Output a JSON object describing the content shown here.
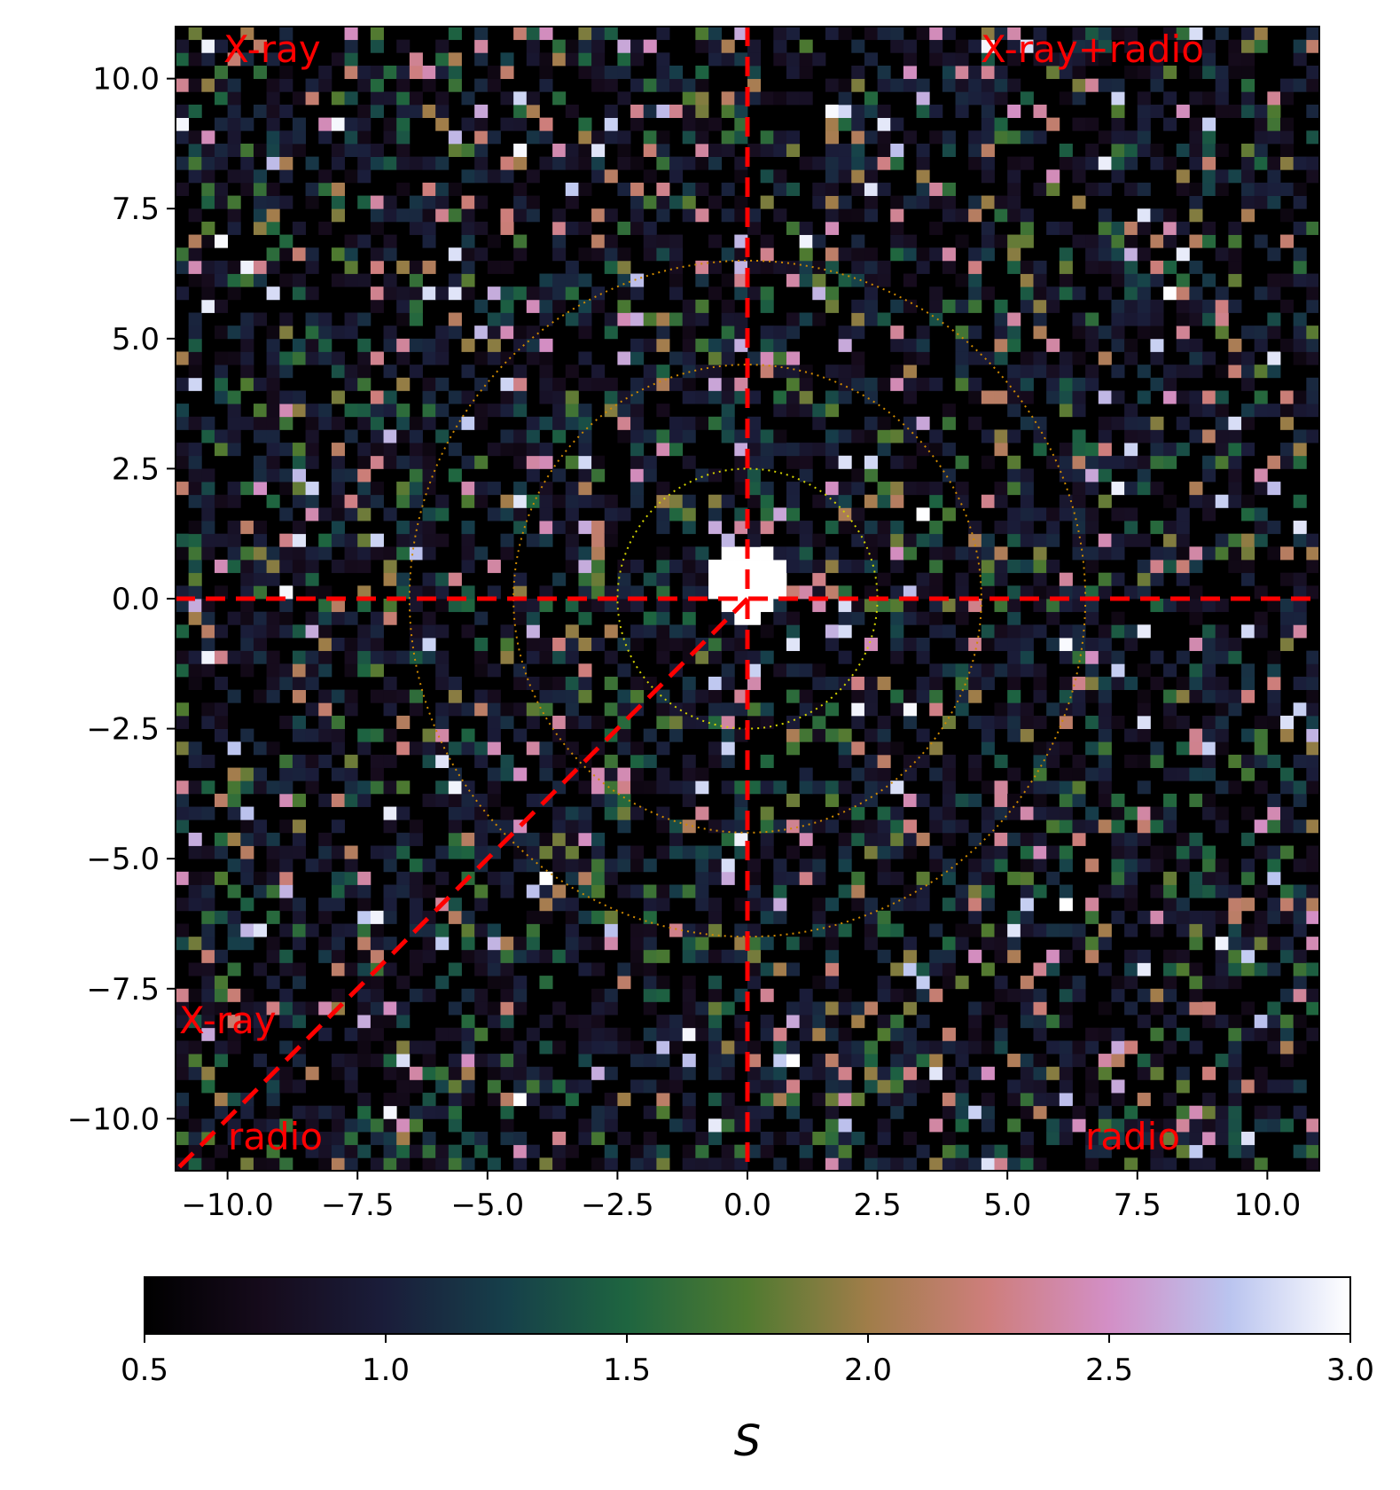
{
  "chart_data": {
    "type": "heatmap",
    "title": "",
    "xlabel": "",
    "ylabel": "",
    "xlim": [
      -11,
      11
    ],
    "ylim": [
      -11,
      11
    ],
    "grid": false,
    "x_ticks": [
      "−10.0",
      "−7.5",
      "−5.0",
      "−2.5",
      "0.0",
      "2.5",
      "5.0",
      "7.5",
      "10.0"
    ],
    "y_ticks": [
      "10.0",
      "7.5",
      "5.0",
      "2.5",
      "0.0",
      "−2.5",
      "−5.0",
      "−7.5",
      "−10.0"
    ],
    "colorbar": {
      "label": "S",
      "range": [
        0.5,
        3.0
      ],
      "ticks": [
        "0.5",
        "1.0",
        "1.5",
        "2.0",
        "2.5",
        "3.0"
      ],
      "colormap": "cubehelix",
      "placement": "bottom"
    },
    "background_value": 0.5,
    "central_peak": {
      "x": 0.0,
      "y": 0.3,
      "value": 3.0
    },
    "circles": [
      {
        "radius": 2.5,
        "color": "#d4d400"
      },
      {
        "radius": 4.5,
        "color": "#d08a00"
      },
      {
        "radius": 6.5,
        "color": "#d08a00"
      }
    ],
    "guide_lines": [
      {
        "from": [
          -11,
          0
        ],
        "to": [
          11,
          0
        ],
        "color": "#ff0000",
        "style": "dashed"
      },
      {
        "from": [
          0,
          11
        ],
        "to": [
          0,
          -11
        ],
        "color": "#ff0000",
        "style": "dashed"
      },
      {
        "from": [
          0,
          0
        ],
        "to": [
          -11,
          -11
        ],
        "color": "#ff0000",
        "style": "dashed"
      }
    ],
    "annotations": [
      {
        "text": "X-ray",
        "position": "top-left"
      },
      {
        "text": "X-ray+radio",
        "position": "top-right"
      },
      {
        "text": "X-ray",
        "position": "left, above diagonal"
      },
      {
        "text": "radio",
        "position": "bottom-left"
      },
      {
        "text": "radio",
        "position": "bottom-right"
      }
    ],
    "cell_values_note": ""
  },
  "colors": {
    "annotation": "#ff0000",
    "guide_line": "#ff0000"
  }
}
